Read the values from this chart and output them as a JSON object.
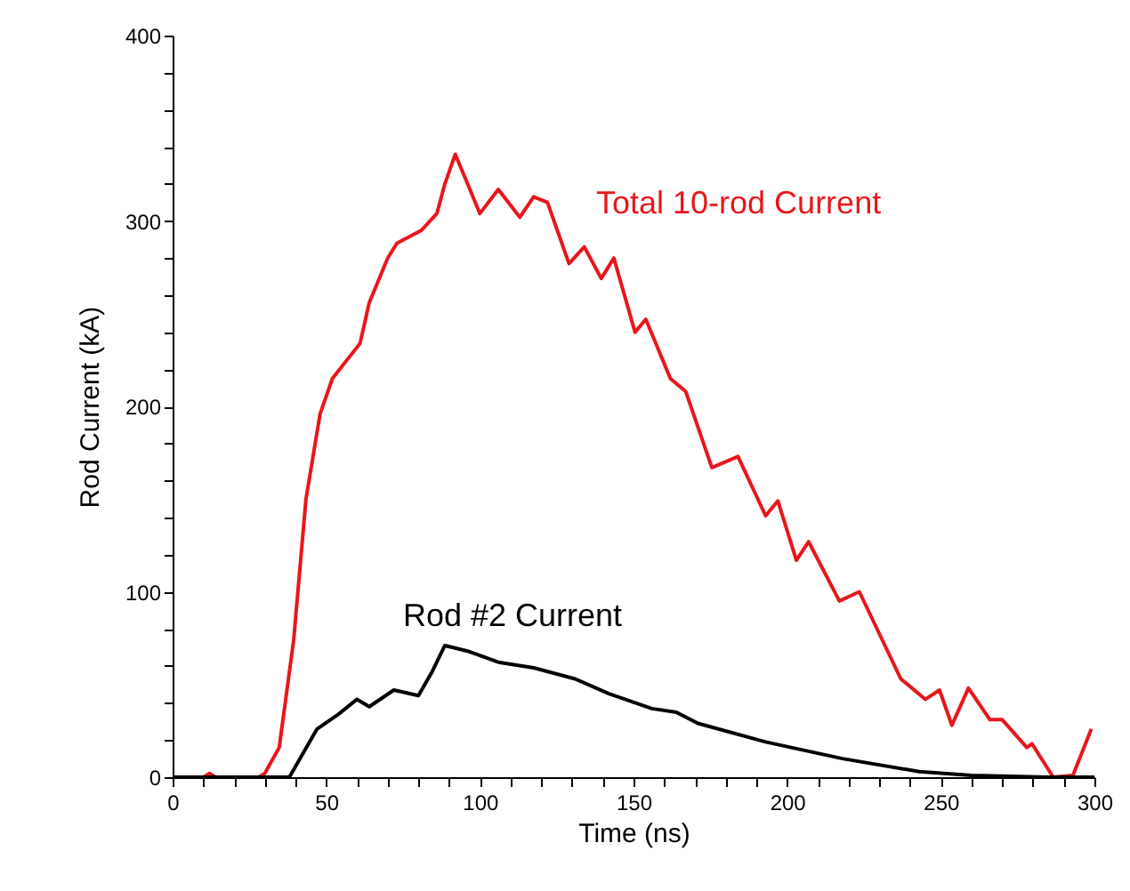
{
  "chart_data": {
    "type": "line",
    "xlabel": "Time (ns)",
    "ylabel": "Rod Current (kA)",
    "xlim": [
      0,
      300
    ],
    "ylim": [
      0,
      400
    ],
    "xticks": [
      0,
      {
        "value": 10,
        "label": null
      },
      {
        "value": 20,
        "label": null
      },
      {
        "value": 30,
        "label": null
      },
      {
        "value": 40,
        "label": null
      },
      50,
      {
        "value": 60,
        "label": null
      },
      {
        "value": 70,
        "label": null
      },
      {
        "value": 80,
        "label": null
      },
      {
        "value": 90,
        "label": null
      },
      100,
      {
        "value": 110,
        "label": null
      },
      {
        "value": 120,
        "label": null
      },
      {
        "value": 130,
        "label": null
      },
      {
        "value": 140,
        "label": null
      },
      150,
      {
        "value": 160,
        "label": null
      },
      {
        "value": 170,
        "label": null
      },
      {
        "value": 180,
        "label": null
      },
      {
        "value": 190,
        "label": null
      },
      200,
      {
        "value": 210,
        "label": null
      },
      {
        "value": 220,
        "label": null
      },
      {
        "value": 230,
        "label": null
      },
      {
        "value": 240,
        "label": null
      },
      250,
      {
        "value": 260,
        "label": null
      },
      {
        "value": 270,
        "label": null
      },
      {
        "value": 280,
        "label": null
      },
      {
        "value": 290,
        "label": null
      },
      300
    ],
    "yticks": [
      0,
      {
        "value": 20,
        "label": null
      },
      {
        "value": 40,
        "label": null
      },
      {
        "value": 60,
        "label": null
      },
      {
        "value": 80,
        "label": null
      },
      100,
      {
        "value": 120,
        "label": null
      },
      {
        "value": 140,
        "label": null
      },
      {
        "value": 160,
        "label": null
      },
      {
        "value": 180,
        "label": null
      },
      200,
      {
        "value": 220,
        "label": null
      },
      {
        "value": 240,
        "label": null
      },
      {
        "value": 260,
        "label": null
      },
      {
        "value": 280,
        "label": null
      },
      300,
      {
        "value": 320,
        "label": null
      },
      {
        "value": 340,
        "label": null
      },
      {
        "value": 360,
        "label": null
      },
      {
        "value": 380,
        "label": null
      },
      400
    ],
    "grid": false,
    "legend": false,
    "marker": "none",
    "line_style": "solid",
    "series": [
      {
        "name": "Total 10-rod Current",
        "color": "#e8161b",
        "x": [
          0,
          10,
          12,
          14,
          28,
          30,
          34.7,
          39.4,
          43.4,
          48,
          52,
          61,
          64,
          70,
          73,
          81,
          86,
          88.6,
          92,
          96,
          100,
          106,
          113,
          117.5,
          122,
          129,
          134,
          139.5,
          143.6,
          150.5,
          154,
          162,
          167,
          175.5,
          184,
          193,
          197,
          203,
          207,
          217,
          223.5,
          237,
          245,
          249.6,
          253.6,
          259,
          266,
          270,
          278,
          279.7,
          286.6,
          293,
          299
        ],
        "values": [
          0,
          0,
          2,
          0,
          0,
          2,
          16,
          74,
          150,
          196,
          215,
          234,
          256,
          280,
          288,
          295,
          304,
          320,
          336,
          320,
          304,
          317,
          302,
          313,
          310,
          277,
          286,
          269,
          280,
          240,
          247,
          215,
          208,
          167,
          173,
          141,
          149,
          117,
          127,
          95,
          100,
          53,
          42,
          47,
          28,
          48,
          31,
          31,
          16,
          18,
          0,
          1,
          26
        ]
      },
      {
        "name": "Rod #2 Current",
        "color": "#000000",
        "x": [
          0,
          38,
          47,
          54,
          60,
          64,
          72,
          80,
          84.5,
          88.6,
          96,
          106,
          117.5,
          131,
          142,
          156,
          164,
          171,
          193,
          218,
          243,
          260,
          285,
          300
        ],
        "values": [
          0,
          0,
          26,
          34,
          42,
          38,
          47,
          44,
          57,
          71,
          68,
          62,
          59,
          53,
          45,
          37,
          35,
          29,
          19,
          10,
          3,
          1,
          0,
          0
        ]
      }
    ]
  }
}
